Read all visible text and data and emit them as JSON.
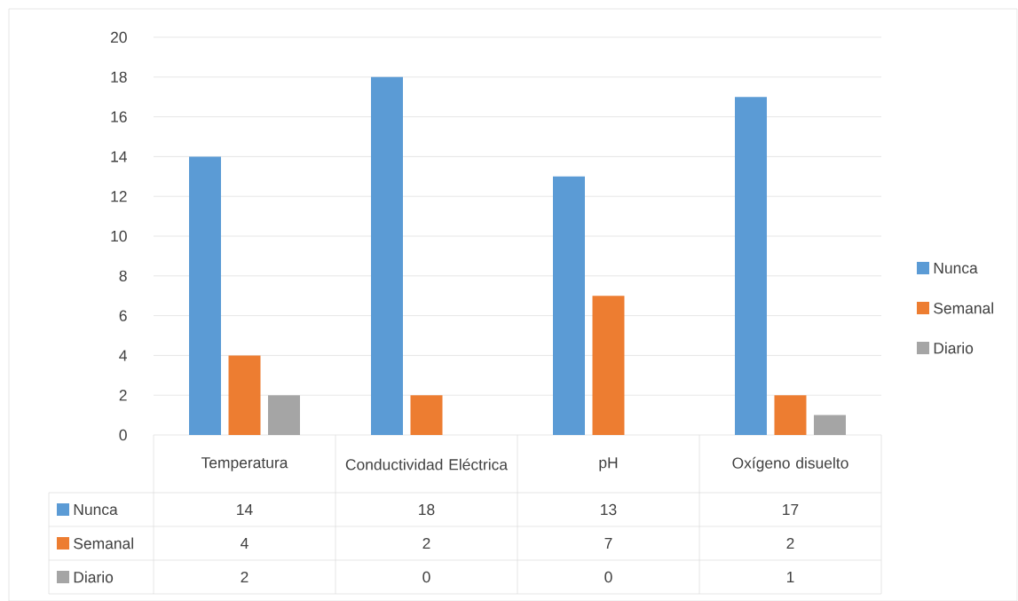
{
  "chart_data": {
    "type": "bar",
    "categories": [
      "Temperatura",
      "Conductividad Eléctrica",
      "pH",
      "Oxígeno disuelto"
    ],
    "series": [
      {
        "name": "Nunca",
        "color": "#5b9bd5",
        "values": [
          14,
          18,
          13,
          17
        ]
      },
      {
        "name": "Semanal",
        "color": "#ed7d31",
        "values": [
          4,
          2,
          7,
          2
        ]
      },
      {
        "name": "Diario",
        "color": "#a5a5a5",
        "values": [
          2,
          0,
          0,
          1
        ]
      }
    ],
    "ylim": [
      0,
      20
    ],
    "yticks": [
      0,
      2,
      4,
      6,
      8,
      10,
      12,
      14,
      16,
      18,
      20
    ],
    "grid": "y",
    "legend": "right",
    "data_labels": true
  }
}
